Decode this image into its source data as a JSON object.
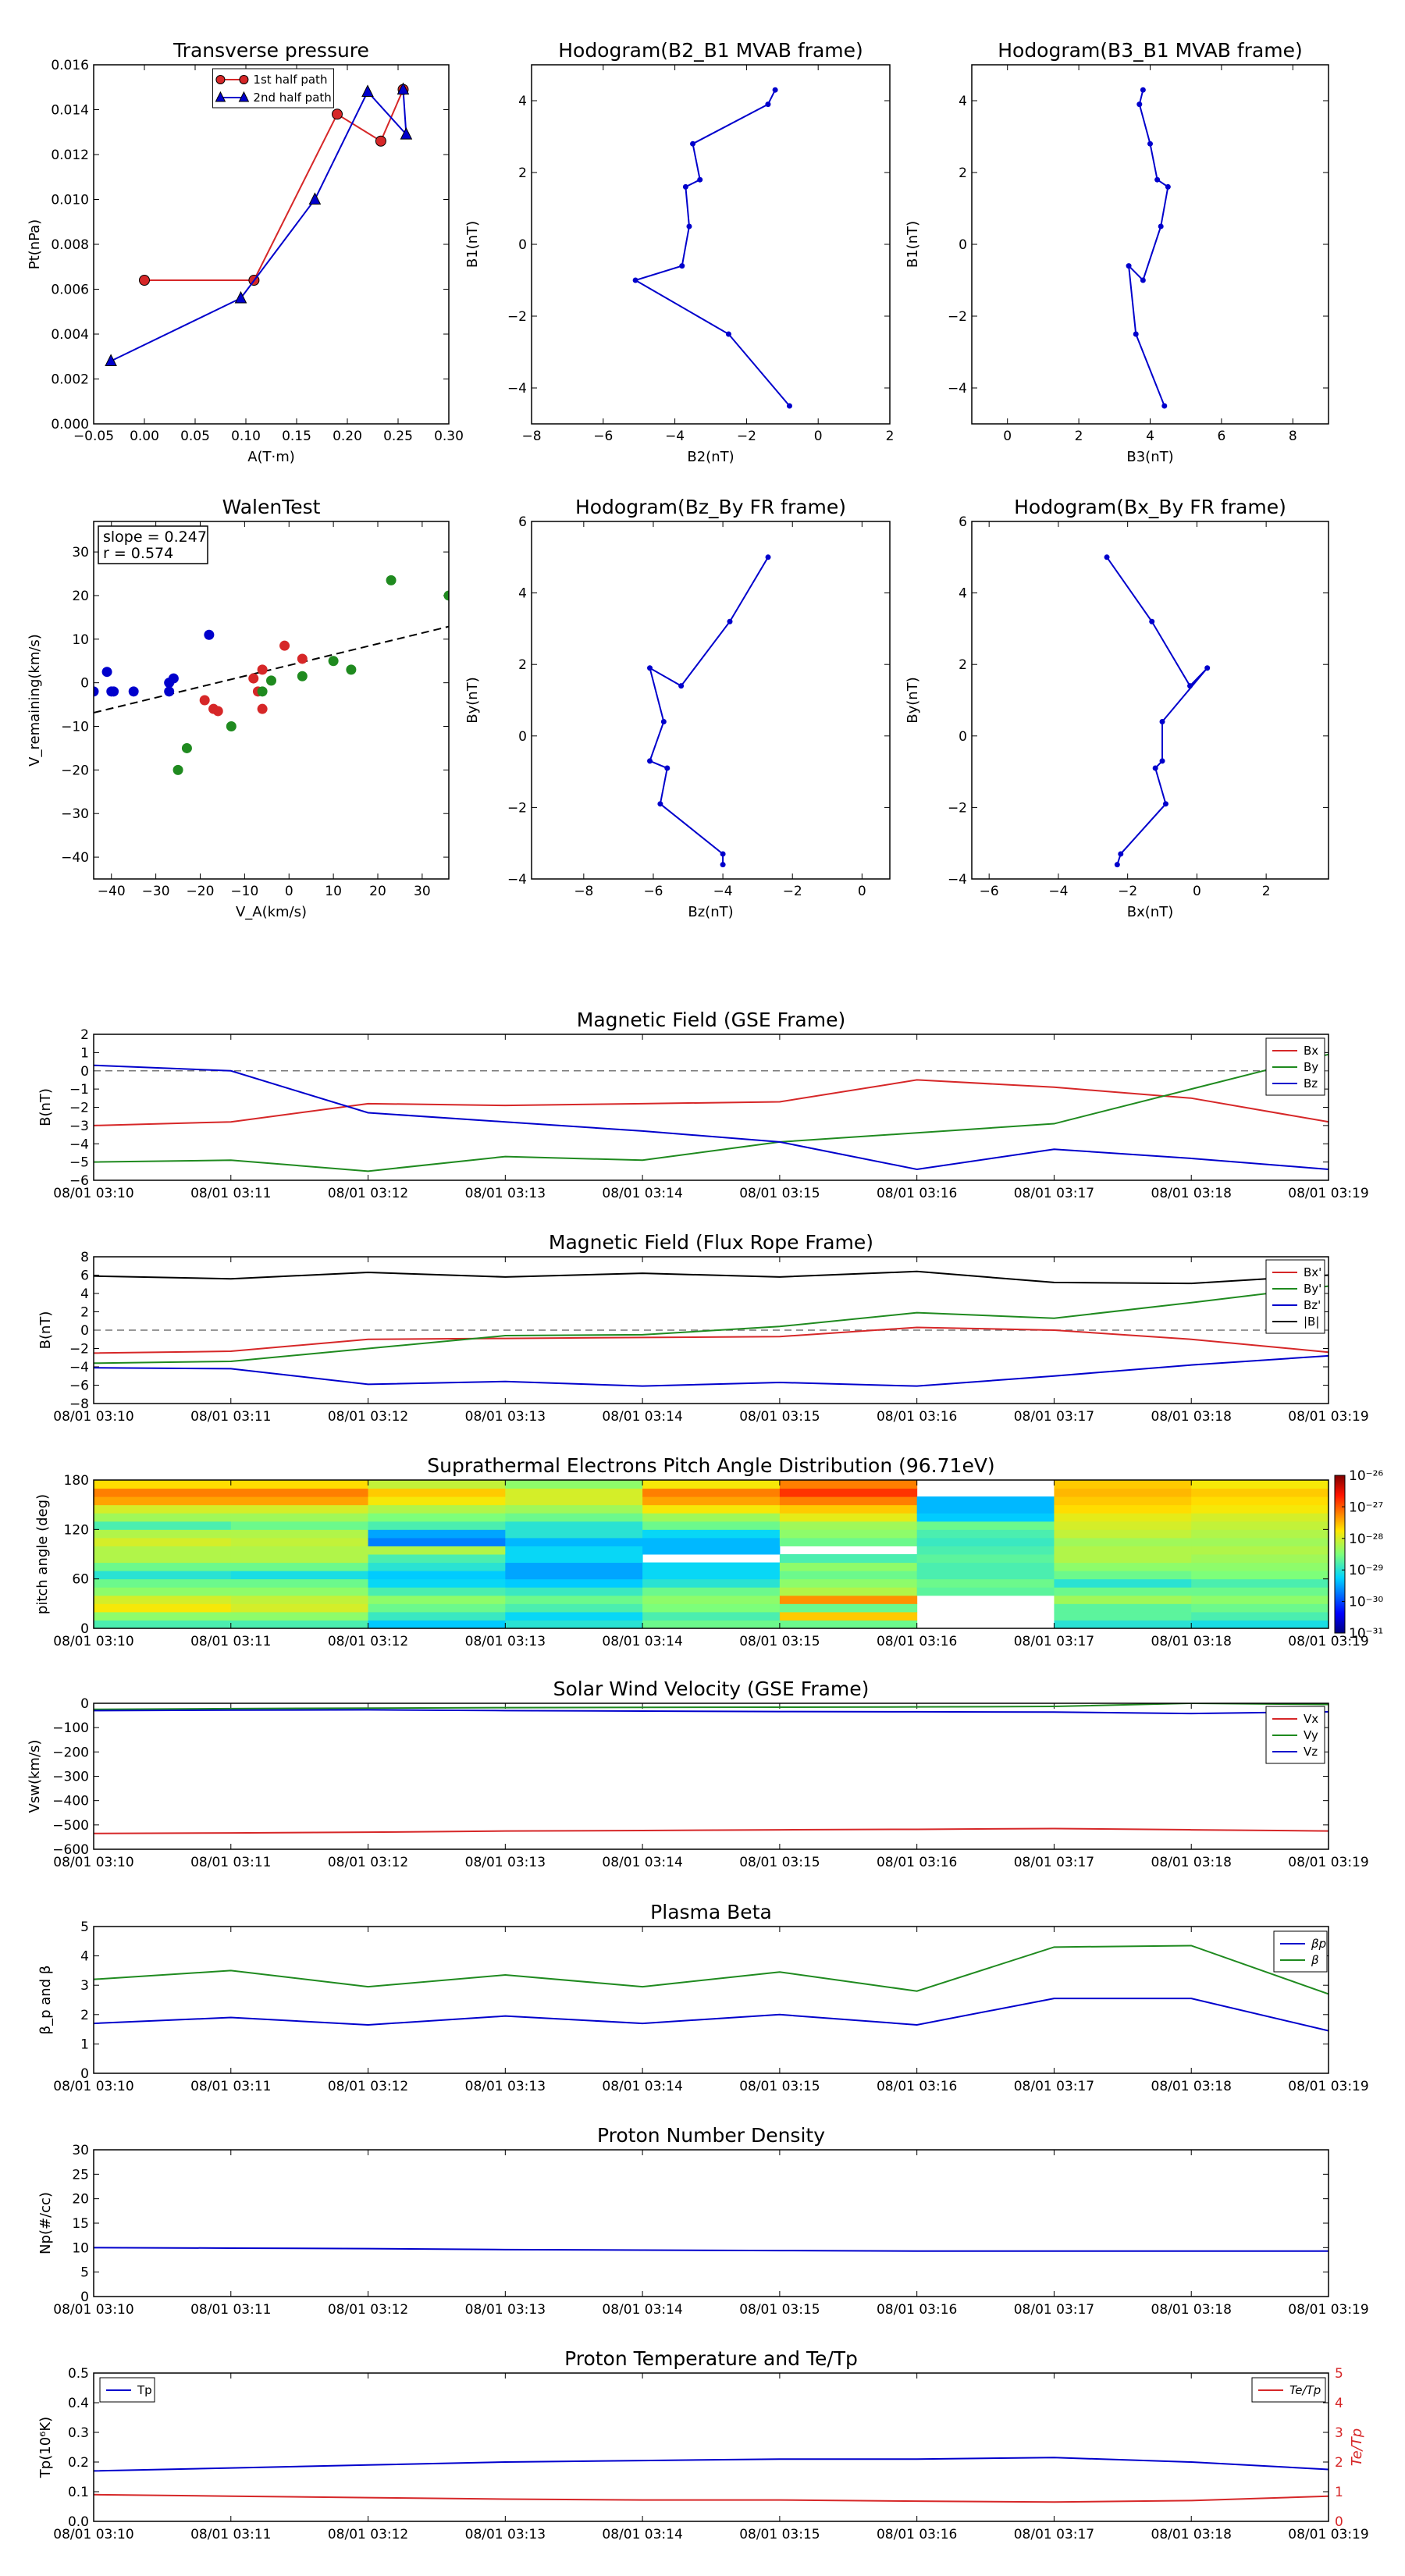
{
  "time_axis": {
    "categories": [
      "08/01 03:10",
      "08/01 03:11",
      "08/01 03:12",
      "08/01 03:13",
      "08/01 03:14",
      "08/01 03:15",
      "08/01 03:16",
      "08/01 03:17",
      "08/01 03:18",
      "08/01 03:19"
    ]
  },
  "chart_data": [
    {
      "id": "pt",
      "type": "line",
      "title": "Transverse pressure",
      "xlabel": "A(T·m)",
      "ylabel": "Pt(nPa)",
      "xlim": [
        -0.05,
        0.3
      ],
      "ylim": [
        0,
        0.016
      ],
      "xticks": [
        "−0.05",
        "0.00",
        "0.05",
        "0.10",
        "0.15",
        "0.20",
        "0.25",
        "0.30"
      ],
      "yticks": [
        "0.000",
        "0.002",
        "0.004",
        "0.006",
        "0.008",
        "0.010",
        "0.012",
        "0.014",
        "0.016"
      ],
      "legend": "top-center",
      "series": [
        {
          "name": "1st half path",
          "color": "#d62728",
          "marker": "circle",
          "x": [
            0.0,
            0.108,
            0.19,
            0.233,
            0.255
          ],
          "y": [
            0.0064,
            0.0064,
            0.0138,
            0.0126,
            0.0149
          ]
        },
        {
          "name": "2nd half path",
          "color": "#0000cc",
          "marker": "triangle",
          "x": [
            0.255,
            0.258,
            0.22,
            0.168,
            0.095,
            -0.033
          ],
          "y": [
            0.0149,
            0.0129,
            0.0148,
            0.01,
            0.0056,
            0.0028
          ]
        }
      ]
    },
    {
      "id": "hodo1",
      "type": "line",
      "title": "Hodogram(B2_B1 MVAB frame)",
      "xlabel": "B2(nT)",
      "ylabel": "B1(nT)",
      "xlim": [
        -8,
        2
      ],
      "ylim": [
        -5,
        5
      ],
      "xticks": [
        "−8",
        "−6",
        "−4",
        "−2",
        "0",
        "2"
      ],
      "yticks": [
        "−4",
        "−2",
        "0",
        "2",
        "4"
      ],
      "series": [
        {
          "color": "#0000cc",
          "x": [
            -1.2,
            -1.4,
            -3.5,
            -3.3,
            -3.7,
            -3.6,
            -3.8,
            -5.1,
            -2.5,
            -0.8
          ],
          "y": [
            4.3,
            3.9,
            2.8,
            1.8,
            1.6,
            0.5,
            -0.6,
            -1.0,
            -2.5,
            -4.5
          ]
        }
      ]
    },
    {
      "id": "hodo2",
      "type": "line",
      "title": "Hodogram(B3_B1 MVAB frame)",
      "xlabel": "B3(nT)",
      "ylabel": "B1(nT)",
      "xlim": [
        -1,
        9
      ],
      "ylim": [
        -5,
        5
      ],
      "xticks": [
        "0",
        "2",
        "4",
        "6",
        "8"
      ],
      "yticks": [
        "−4",
        "−2",
        "0",
        "2",
        "4"
      ],
      "series": [
        {
          "color": "#0000cc",
          "x": [
            3.8,
            3.7,
            4.0,
            4.2,
            4.5,
            4.3,
            3.8,
            3.4,
            3.6,
            4.4
          ],
          "y": [
            4.3,
            3.9,
            2.8,
            1.8,
            1.6,
            0.5,
            -1.0,
            -0.6,
            -2.5,
            -4.5
          ]
        }
      ]
    },
    {
      "id": "walen",
      "type": "scatter",
      "title": "WalenTest",
      "xlabel": "V_A(km/s)",
      "ylabel": "V_remaining(km/s)",
      "xlim": [
        -44,
        36
      ],
      "ylim": [
        -45,
        37
      ],
      "xticks": [
        "−40",
        "−30",
        "−20",
        "−10",
        "0",
        "10",
        "20",
        "30"
      ],
      "yticks": [
        "−40",
        "−30",
        "−20",
        "−10",
        "0",
        "10",
        "20",
        "30"
      ],
      "annotation": [
        "slope = 0.247",
        "r = 0.574"
      ],
      "fit": {
        "slope": 0.247,
        "intercept": 4.0
      },
      "series": [
        {
          "color": "#0000cc",
          "x": [
            -44,
            -41,
            -40,
            -39.5,
            -35,
            -27,
            -26,
            -27,
            -18
          ],
          "y": [
            -2,
            2.5,
            -2,
            -2,
            -2,
            0,
            1,
            -2,
            11
          ]
        },
        {
          "color": "#d62728",
          "x": [
            -19,
            -17,
            -16,
            -8,
            -7,
            -6,
            -6,
            -1,
            3
          ],
          "y": [
            -4,
            -6,
            -6.5,
            1,
            -2,
            3,
            -6,
            8.5,
            5.5
          ]
        },
        {
          "color": "#1f8a1f",
          "x": [
            -23,
            -25,
            -13,
            -6,
            -4,
            3,
            10,
            14,
            23,
            36
          ],
          "y": [
            -15,
            -20,
            -10,
            -2,
            0.5,
            1.5,
            5,
            3,
            23.5,
            20
          ]
        }
      ]
    },
    {
      "id": "hodo3",
      "type": "line",
      "title": "Hodogram(Bz_By FR frame)",
      "xlabel": "Bz(nT)",
      "ylabel": "By(nT)",
      "xlim": [
        -9.5,
        0.8
      ],
      "ylim": [
        -4,
        6
      ],
      "xticks": [
        "−8",
        "−6",
        "−4",
        "−2",
        "0"
      ],
      "yticks": [
        "−4",
        "−2",
        "0",
        "2",
        "4",
        "6"
      ],
      "series": [
        {
          "color": "#0000cc",
          "x": [
            -2.7,
            -3.8,
            -5.2,
            -6.1,
            -5.7,
            -6.1,
            -5.6,
            -5.8,
            -4.0,
            -4.0
          ],
          "y": [
            5.0,
            3.2,
            1.4,
            1.9,
            0.4,
            -0.7,
            -0.9,
            -1.9,
            -3.3,
            -3.6
          ]
        }
      ]
    },
    {
      "id": "hodo4",
      "type": "line",
      "title": "Hodogram(Bx_By FR frame)",
      "xlabel": "Bx(nT)",
      "ylabel": "By(nT)",
      "xlim": [
        -6.5,
        3.8
      ],
      "ylim": [
        -4,
        6
      ],
      "xticks": [
        "−6",
        "−4",
        "−2",
        "0",
        "2"
      ],
      "yticks": [
        "−4",
        "−2",
        "0",
        "2",
        "4",
        "6"
      ],
      "series": [
        {
          "color": "#0000cc",
          "x": [
            -2.6,
            -1.3,
            -0.2,
            0.3,
            -1.0,
            -1.0,
            -1.2,
            -0.9,
            -2.2,
            -2.3
          ],
          "y": [
            5.0,
            3.2,
            1.4,
            1.9,
            0.4,
            -0.7,
            -0.9,
            -1.9,
            -3.3,
            -3.6
          ]
        }
      ]
    },
    {
      "id": "bgse",
      "type": "line",
      "title": "Magnetic Field (GSE Frame)",
      "ylabel": "B(nT)",
      "ylim": [
        -6,
        2
      ],
      "yticks": [
        "−6",
        "−5",
        "−4",
        "−3",
        "−2",
        "−1",
        "0",
        "1",
        "2"
      ],
      "hline": 0,
      "legend": "top-right",
      "series": [
        {
          "name": "Bx",
          "color": "#d62728",
          "values": [
            -3.0,
            -2.8,
            -1.8,
            -1.9,
            -1.8,
            -1.7,
            -0.5,
            -0.9,
            -1.5,
            -2.8
          ]
        },
        {
          "name": "By",
          "color": "#1f8a1f",
          "values": [
            -5.0,
            -4.9,
            -5.5,
            -4.7,
            -4.9,
            -3.9,
            -3.4,
            -2.9,
            -1.0,
            0.9
          ]
        },
        {
          "name": "Bz",
          "color": "#0000cc",
          "values": [
            0.3,
            0.0,
            -2.3,
            -2.8,
            -3.3,
            -3.9,
            -5.4,
            -4.3,
            -4.8,
            -5.4
          ]
        }
      ]
    },
    {
      "id": "bfr",
      "type": "line",
      "title": "Magnetic Field (Flux Rope Frame)",
      "ylabel": "B(nT)",
      "ylim": [
        -8,
        8
      ],
      "yticks": [
        "−8",
        "−6",
        "−4",
        "−2",
        "0",
        "2",
        "4",
        "6",
        "8"
      ],
      "hline": 0,
      "legend": "top-right",
      "series": [
        {
          "name": "Bx'",
          "color": "#d62728",
          "values": [
            -2.5,
            -2.3,
            -1.0,
            -0.9,
            -0.8,
            -0.7,
            0.3,
            0.0,
            -1.0,
            -2.4
          ]
        },
        {
          "name": "By'",
          "color": "#1f8a1f",
          "values": [
            -3.6,
            -3.4,
            -2.0,
            -0.6,
            -0.5,
            0.4,
            1.9,
            1.3,
            3.0,
            4.8
          ]
        },
        {
          "name": "Bz'",
          "color": "#0000cc",
          "values": [
            -4.1,
            -4.2,
            -5.9,
            -5.6,
            -6.1,
            -5.7,
            -6.1,
            -5.0,
            -3.8,
            -2.8
          ]
        },
        {
          "name": "|B|",
          "color": "#000000",
          "values": [
            5.9,
            5.6,
            6.3,
            5.8,
            6.2,
            5.8,
            6.4,
            5.2,
            5.1,
            6.0
          ]
        }
      ]
    },
    {
      "id": "pad",
      "type": "heatmap",
      "title": "Suprathermal Electrons Pitch Angle Distribution (96.71eV)",
      "ylabel": "pitch angle (deg)",
      "ylim": [
        0,
        180
      ],
      "yticks": [
        "0",
        "60",
        "120",
        "180"
      ],
      "colorbar": {
        "ticks": [
          "10⁻²⁶",
          "10⁻²⁷",
          "10⁻²⁸",
          "10⁻²⁹",
          "10⁻³⁰",
          "10⁻³¹"
        ],
        "range_log10": [
          -31,
          -26
        ]
      },
      "bins_deg": [
        0,
        10,
        20,
        30,
        40,
        50,
        60,
        70,
        80,
        90,
        100,
        110,
        120,
        130,
        140,
        150,
        160,
        170,
        180
      ],
      "values_log10": [
        [
          -28.8,
          -28.4,
          -27.8,
          -28.0,
          -28.4,
          -28.6,
          -29.0,
          -28.6,
          -28.2,
          -28.2,
          -28.0,
          -28.2,
          -28.8,
          -28.3,
          -28.0,
          -27.4,
          -27.2,
          -27.7
        ],
        [
          -28.8,
          -28.4,
          -28.0,
          -28.1,
          -28.4,
          -28.6,
          -29.1,
          -28.6,
          -28.2,
          -28.2,
          -28.1,
          -28.2,
          -28.6,
          -28.3,
          -28.0,
          -27.4,
          -27.2,
          -27.7
        ],
        [
          -29.3,
          -28.9,
          -28.6,
          -28.4,
          -28.8,
          -29.2,
          -29.3,
          -29.0,
          -28.8,
          -28.2,
          -29.7,
          -29.5,
          -28.8,
          -28.5,
          -28.2,
          -27.8,
          -27.6,
          -28.1
        ],
        [
          -29.0,
          -29.2,
          -28.8,
          -28.6,
          -28.9,
          -29.3,
          -29.5,
          -29.5,
          -29.2,
          -29.2,
          -29.4,
          -29.0,
          -29.0,
          -28.6,
          -28.3,
          -28.0,
          -28.0,
          -28.4
        ],
        [
          -28.6,
          -28.8,
          -28.5,
          -28.4,
          -28.6,
          -29.0,
          -29.2,
          -29.2,
          null,
          -29.4,
          -29.4,
          -29.2,
          -28.6,
          -28.3,
          -27.8,
          -27.4,
          -27.2,
          -27.8
        ],
        [
          -28.6,
          -27.6,
          -28.6,
          -27.3,
          -28.2,
          -28.4,
          -28.6,
          -28.4,
          -28.8,
          null,
          -28.6,
          -28.4,
          -28.3,
          -27.9,
          -27.6,
          -27.2,
          -26.8,
          -27.2
        ],
        [
          null,
          null,
          null,
          null,
          -28.7,
          -28.6,
          -28.8,
          -28.8,
          -28.7,
          -28.8,
          -28.9,
          -28.8,
          -28.6,
          -29.3,
          -29.4,
          -29.4,
          null,
          null
        ],
        [
          -29.0,
          -28.7,
          -28.7,
          -28.3,
          -28.6,
          -29.0,
          -28.6,
          -28.4,
          -28.2,
          -28.2,
          -28.3,
          -28.1,
          -28.0,
          -27.9,
          -27.7,
          -27.6,
          -27.5,
          -27.6
        ],
        [
          -29.1,
          -28.8,
          -28.6,
          -28.4,
          -28.6,
          -28.8,
          -28.5,
          -28.4,
          -28.3,
          -28.2,
          -28.3,
          -28.2,
          -28.1,
          -28.0,
          -27.8,
          -27.7,
          -27.6,
          -27.8
        ]
      ]
    },
    {
      "id": "vsw",
      "type": "line",
      "title": "Solar Wind Velocity (GSE Frame)",
      "ylabel": "Vsw(km/s)",
      "ylim": [
        -600,
        0
      ],
      "yticks": [
        "−600",
        "−500",
        "−400",
        "−300",
        "−200",
        "−100",
        "0"
      ],
      "legend": "right",
      "series": [
        {
          "name": "Vx",
          "color": "#d62728",
          "values": [
            -535,
            -533,
            -530,
            -525,
            -523,
            -520,
            -518,
            -515,
            -520,
            -525
          ]
        },
        {
          "name": "Vy",
          "color": "#1f8a1f",
          "values": [
            -25,
            -22,
            -20,
            -18,
            -17,
            -16,
            -15,
            -13,
            0,
            -5
          ]
        },
        {
          "name": "Vz",
          "color": "#0000cc",
          "values": [
            -30,
            -28,
            -27,
            -30,
            -32,
            -34,
            -35,
            -36,
            -42,
            -35
          ]
        }
      ]
    },
    {
      "id": "beta",
      "type": "line",
      "title": "Plasma Beta",
      "ylabel": "β_p and β",
      "ylim": [
        0,
        5
      ],
      "yticks": [
        "0",
        "1",
        "2",
        "3",
        "4",
        "5"
      ],
      "legend": "top-right",
      "series": [
        {
          "name": "βp",
          "color": "#0000cc",
          "values": [
            1.7,
            1.9,
            1.65,
            1.95,
            1.7,
            2.0,
            1.65,
            2.55,
            2.55,
            1.45
          ]
        },
        {
          "name": "β",
          "color": "#1f8a1f",
          "values": [
            3.2,
            3.5,
            2.95,
            3.35,
            2.95,
            3.45,
            2.8,
            4.3,
            4.35,
            2.7
          ]
        }
      ]
    },
    {
      "id": "np",
      "type": "line",
      "title": "Proton Number Density",
      "ylabel": "Np(#/cc)",
      "ylim": [
        0,
        30
      ],
      "yticks": [
        "0",
        "5",
        "10",
        "15",
        "20",
        "25",
        "30"
      ],
      "series": [
        {
          "name": "Np",
          "color": "#0000cc",
          "values": [
            10.0,
            9.9,
            9.8,
            9.6,
            9.5,
            9.4,
            9.3,
            9.3,
            9.3,
            9.3
          ]
        }
      ]
    },
    {
      "id": "tp",
      "type": "line",
      "title": "Proton Temperature and Te/Tp",
      "ylabel": "Tp(10⁶K)",
      "y2label": "Te/Tp",
      "ylim": [
        0,
        0.5
      ],
      "yticks": [
        "0.0",
        "0.1",
        "0.2",
        "0.3",
        "0.4",
        "0.5"
      ],
      "y2lim": [
        0,
        5
      ],
      "y2ticks": [
        "0",
        "1",
        "2",
        "3",
        "4",
        "5"
      ],
      "series": [
        {
          "name": "Tp",
          "color": "#0000cc",
          "axis": "left",
          "values": [
            0.17,
            0.18,
            0.19,
            0.2,
            0.205,
            0.21,
            0.21,
            0.215,
            0.2,
            0.175
          ]
        },
        {
          "name": "Te/Tp",
          "color": "#d62728",
          "axis": "right",
          "values": [
            0.9,
            0.85,
            0.8,
            0.75,
            0.72,
            0.72,
            0.68,
            0.65,
            0.7,
            0.85
          ]
        }
      ]
    }
  ]
}
